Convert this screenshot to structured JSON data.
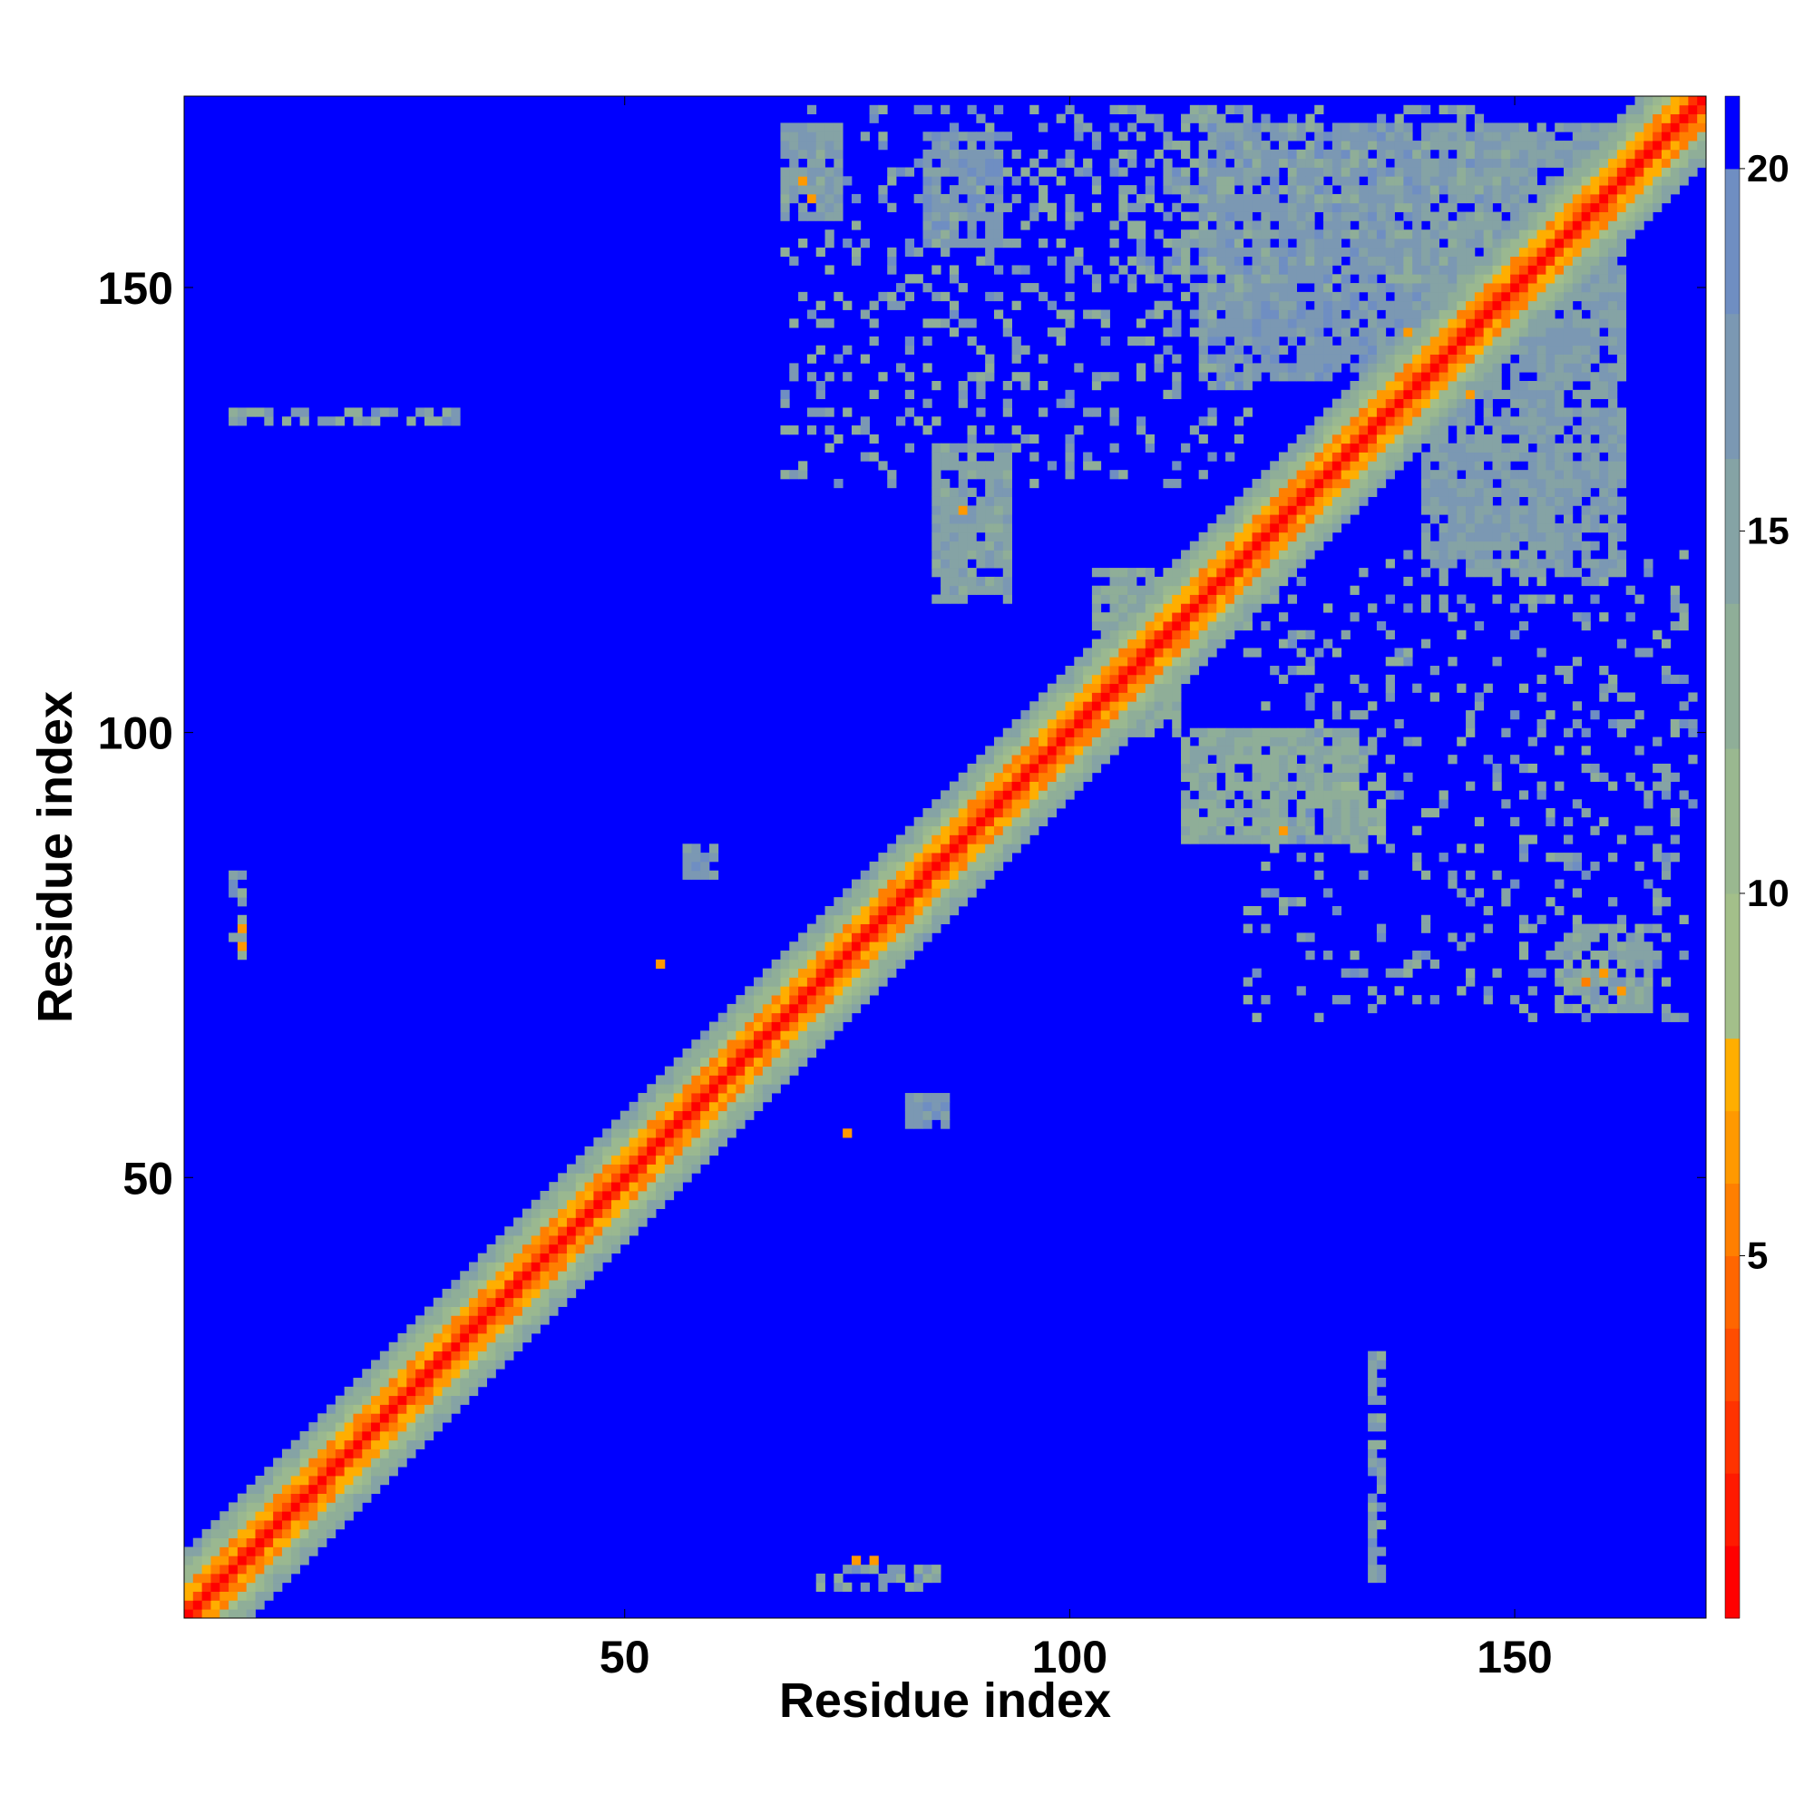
{
  "chart_data": {
    "type": "heatmap",
    "title": "",
    "xlabel": "Residue index",
    "ylabel": "Residue index",
    "xlim": [
      1,
      171
    ],
    "ylim": [
      1,
      171
    ],
    "xticks": [
      50,
      100,
      150
    ],
    "yticks": [
      50,
      100,
      150
    ],
    "grid": false,
    "value_scale": {
      "min": 0,
      "max": 21,
      "colorbar_ticks": [
        5,
        10,
        15,
        20
      ],
      "bands": [
        {
          "from": 0,
          "to": 1,
          "color": "#ff0000"
        },
        {
          "from": 1,
          "to": 2,
          "color": "#ff1a00"
        },
        {
          "from": 2,
          "to": 3,
          "color": "#ff3300"
        },
        {
          "from": 3,
          "to": 4,
          "color": "#ff4d00"
        },
        {
          "from": 4,
          "to": 5,
          "color": "#ff6600"
        },
        {
          "from": 5,
          "to": 6,
          "color": "#ff7f00"
        },
        {
          "from": 6,
          "to": 7,
          "color": "#ff9900"
        },
        {
          "from": 7,
          "to": 8,
          "color": "#ffae00"
        },
        {
          "from": 8,
          "to": 10,
          "color": "#a3bf8a"
        },
        {
          "from": 10,
          "to": 12,
          "color": "#9ab890"
        },
        {
          "from": 12,
          "to": 14,
          "color": "#8fae98"
        },
        {
          "from": 14,
          "to": 16,
          "color": "#85a3a5"
        },
        {
          "from": 16,
          "to": 18,
          "color": "#7b98b3"
        },
        {
          "from": 18,
          "to": 20,
          "color": "#6f8ec2"
        },
        {
          "from": 20,
          "to": 21,
          "color": "#0000ff"
        }
      ]
    },
    "background_value": 21,
    "regions": [
      {
        "description": "main diagonal",
        "kind": "diagonal",
        "i_range": [
          1,
          171
        ],
        "width_core": 1.5,
        "width_mid": 3.5,
        "width_outer": 7.5
      },
      {
        "kind": "block",
        "x": [
          85,
          93
        ],
        "y": [
          115,
          132
        ],
        "value": 15
      },
      {
        "kind": "block",
        "x": [
          103,
          112
        ],
        "y": [
          100,
          118
        ],
        "value": 14
      },
      {
        "kind": "block",
        "x": [
          113,
          132
        ],
        "y": [
          88,
          100
        ],
        "value": 14
      },
      {
        "kind": "block",
        "x": [
          140,
          162
        ],
        "y": [
          118,
          168
        ],
        "value": 16
      },
      {
        "kind": "block",
        "x": [
          115,
          140
        ],
        "y": [
          140,
          168
        ],
        "value": 17
      },
      {
        "kind": "block",
        "x": [
          155,
          165
        ],
        "y": [
          69,
          78
        ],
        "value": 15
      },
      {
        "kind": "block",
        "x": [
          68,
          74
        ],
        "y": [
          158,
          168
        ],
        "value": 16
      },
      {
        "kind": "block",
        "x": [
          84,
          92
        ],
        "y": [
          155,
          167
        ],
        "value": 17
      },
      {
        "kind": "block",
        "x": [
          57,
          60
        ],
        "y": [
          84,
          87
        ],
        "value": 17
      },
      {
        "kind": "block",
        "x": [
          82,
          86
        ],
        "y": [
          56,
          59
        ],
        "value": 17
      },
      {
        "kind": "block",
        "x": [
          131,
          135
        ],
        "y": [
          89,
          94
        ],
        "value": 13
      }
    ],
    "contacts": [
      {
        "x": 138,
        "y": 145,
        "value": 6
      },
      {
        "x": 145,
        "y": 138,
        "value": 6
      },
      {
        "x": 140,
        "y": 143,
        "value": 6
      },
      {
        "x": 143,
        "y": 140,
        "value": 6
      },
      {
        "x": 160,
        "y": 73,
        "value": 6
      },
      {
        "x": 162,
        "y": 71,
        "value": 6
      },
      {
        "x": 158,
        "y": 72,
        "value": 5
      },
      {
        "x": 70,
        "y": 162,
        "value": 6
      },
      {
        "x": 71,
        "y": 160,
        "value": 6
      },
      {
        "x": 88,
        "y": 125,
        "value": 6
      },
      {
        "x": 124,
        "y": 89,
        "value": 6
      },
      {
        "x": 7,
        "y": 78,
        "value": 6
      },
      {
        "x": 7,
        "y": 76,
        "value": 6
      },
      {
        "x": 54,
        "y": 74,
        "value": 6
      },
      {
        "x": 75,
        "y": 55,
        "value": 6
      },
      {
        "x": 76,
        "y": 7,
        "value": 6
      },
      {
        "x": 78,
        "y": 7,
        "value": 6
      }
    ],
    "sparse_clusters": [
      {
        "x": [
          68,
          120
        ],
        "y": [
          128,
          170
        ],
        "density": 0.2
      },
      {
        "x": [
          120,
          170
        ],
        "y": [
          68,
          120
        ],
        "density": 0.15
      },
      {
        "x": [
          105,
          150
        ],
        "y": [
          150,
          170
        ],
        "density": 0.3
      },
      {
        "x": [
          6,
          31
        ],
        "y": [
          135,
          136
        ],
        "density": 0.6
      },
      {
        "x": [
          134,
          135
        ],
        "y": [
          5,
          30
        ],
        "density": 0.7
      },
      {
        "x": [
          72,
          86
        ],
        "y": [
          4,
          6
        ],
        "density": 0.5
      },
      {
        "x": [
          6,
          7
        ],
        "y": [
          75,
          84
        ],
        "density": 0.6
      }
    ]
  }
}
